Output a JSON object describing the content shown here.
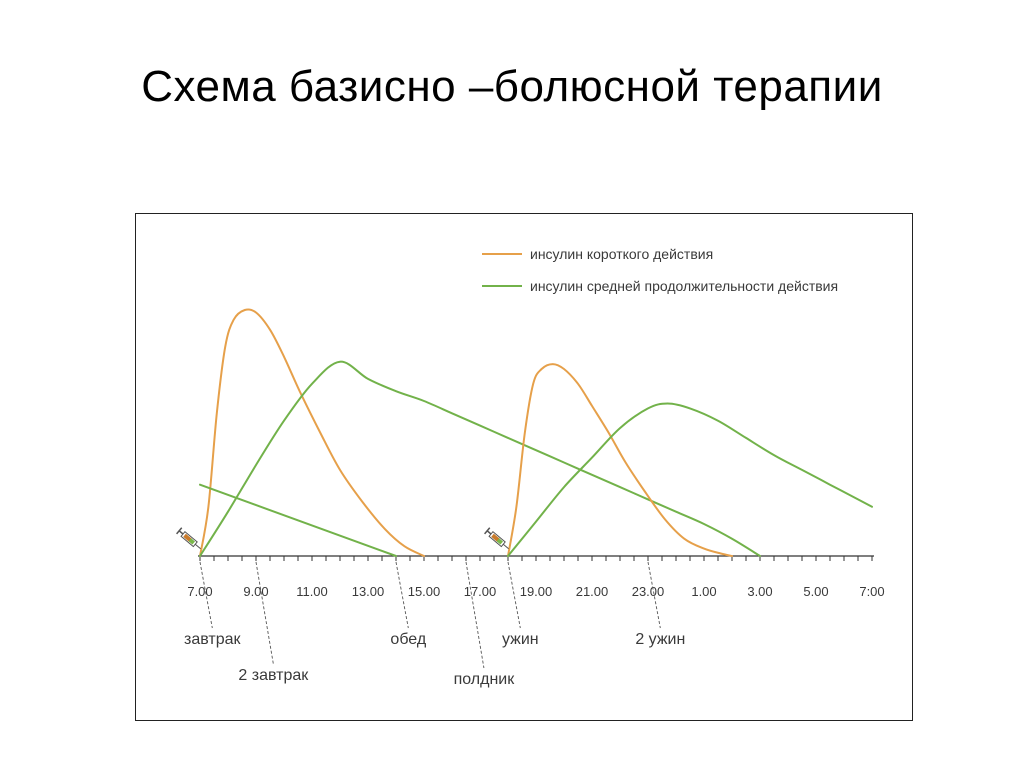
{
  "slide": {
    "title": "Схема базисно –болюсной терапии"
  },
  "chart_data": {
    "type": "line",
    "xlabel": "",
    "ylabel": "",
    "x_ticks": [
      "7.00",
      "9.00",
      "11.00",
      "13.00",
      "15.00",
      "17.00",
      "19.00",
      "21.00",
      "23.00",
      "1.00",
      "3.00",
      "5.00",
      "7:00"
    ],
    "legend": {
      "placement": "top-right",
      "entries": [
        {
          "name": "инсулин короткого действия",
          "color": "#e6a04a"
        },
        {
          "name": "инсулин средней продолжительности действия",
          "color": "#72b24a"
        }
      ]
    },
    "series": [
      {
        "name": "инсулин короткого действия",
        "color": "#e6a04a",
        "points": [
          [
            7.0,
            0
          ],
          [
            7.3,
            20
          ],
          [
            7.6,
            58
          ],
          [
            7.9,
            85
          ],
          [
            8.2,
            96
          ],
          [
            8.6,
            100
          ],
          [
            9.0,
            99
          ],
          [
            9.5,
            92
          ],
          [
            10.0,
            81
          ],
          [
            10.6,
            66
          ],
          [
            11.3,
            50
          ],
          [
            12.0,
            35
          ],
          [
            12.8,
            22
          ],
          [
            13.6,
            11
          ],
          [
            14.3,
            4
          ],
          [
            15.0,
            0
          ]
        ]
      },
      {
        "name": "инсулин средней продолжительности действия",
        "color": "#72b24a",
        "points": [
          [
            7.0,
            0
          ],
          [
            8.0,
            18
          ],
          [
            9.0,
            37
          ],
          [
            10.0,
            55
          ],
          [
            11.0,
            70
          ],
          [
            12.0,
            79
          ],
          [
            13.0,
            72
          ],
          [
            14.0,
            67
          ],
          [
            15.0,
            63
          ],
          [
            16.0,
            58
          ],
          [
            17.0,
            53
          ],
          [
            18.0,
            48
          ],
          [
            19.0,
            43
          ],
          [
            20.0,
            38
          ],
          [
            21.0,
            33
          ],
          [
            22.0,
            28
          ],
          [
            23.0,
            23
          ],
          [
            24.0,
            18
          ],
          [
            25.0,
            13
          ],
          [
            26.0,
            7
          ],
          [
            27.0,
            0
          ]
        ]
      },
      {
        "name": "инсулин средней продолжительности действия",
        "color": "#72b24a",
        "points": [
          [
            7.0,
            29
          ],
          [
            14.0,
            0
          ]
        ]
      },
      {
        "name": "инсулин короткого действия",
        "color": "#e6a04a",
        "points": [
          [
            18.0,
            0
          ],
          [
            18.3,
            20
          ],
          [
            18.6,
            50
          ],
          [
            18.9,
            70
          ],
          [
            19.2,
            76
          ],
          [
            19.6,
            78
          ],
          [
            20.0,
            76
          ],
          [
            20.5,
            70
          ],
          [
            21.0,
            61
          ],
          [
            21.6,
            50
          ],
          [
            22.2,
            38
          ],
          [
            22.9,
            26
          ],
          [
            23.6,
            15
          ],
          [
            24.3,
            7
          ],
          [
            25.0,
            3
          ],
          [
            25.6,
            1
          ],
          [
            26.0,
            0
          ]
        ]
      },
      {
        "name": "инсулин средней продолжительности действия",
        "color": "#72b24a",
        "points": [
          [
            18.0,
            0
          ],
          [
            19.0,
            14
          ],
          [
            20.0,
            28
          ],
          [
            21.0,
            40
          ],
          [
            22.0,
            52
          ],
          [
            23.0,
            60
          ],
          [
            23.7,
            62
          ],
          [
            24.5,
            60
          ],
          [
            25.5,
            55
          ],
          [
            26.5,
            48
          ],
          [
            27.5,
            41
          ],
          [
            28.5,
            35
          ],
          [
            29.5,
            29
          ],
          [
            30.5,
            23
          ],
          [
            31.0,
            20
          ]
        ]
      }
    ],
    "meal_labels": [
      {
        "text": "завтрак",
        "x_hour": 7.0
      },
      {
        "text": "2 завтрак",
        "x_hour": 9.0
      },
      {
        "text": "обед",
        "x_hour": 14.0
      },
      {
        "text": "полдник",
        "x_hour": 16.5
      },
      {
        "text": "ужин",
        "x_hour": 18.0
      },
      {
        "text": "2 ужин",
        "x_hour": 23.0
      }
    ],
    "injections": [
      {
        "x_hour": 7.0
      },
      {
        "x_hour": 18.0
      }
    ]
  }
}
